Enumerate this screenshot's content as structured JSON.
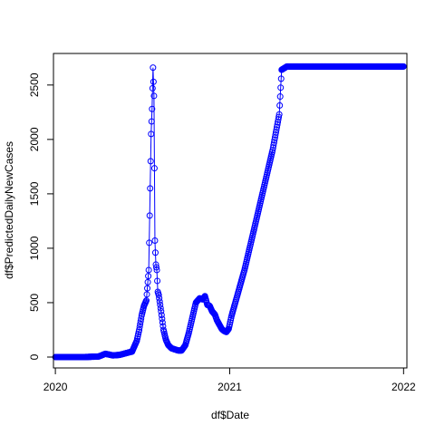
{
  "chart_data": {
    "type": "line",
    "title": "",
    "xlabel": "df$Date",
    "ylabel": "df$PredictedDailyNewCases",
    "x_is_date": true,
    "xlim": [
      "2019-12-28",
      "2022-01-08"
    ],
    "ylim": [
      -100,
      2790
    ],
    "x_ticks": [
      {
        "value": "2020-01-01",
        "label": "2020"
      },
      {
        "value": "2021-01-01",
        "label": "2021"
      },
      {
        "value": "2022-01-01",
        "label": "2022"
      }
    ],
    "y_ticks": [
      {
        "value": 0,
        "label": "0"
      },
      {
        "value": 500,
        "label": "500"
      },
      {
        "value": 1000,
        "label": "1000"
      },
      {
        "value": 1500,
        "label": "1500"
      },
      {
        "value": 2000,
        "label": "2000"
      },
      {
        "value": 2500,
        "label": "2500"
      }
    ],
    "grid": false,
    "legend": "none",
    "series_color": "#0000ff",
    "series": [
      {
        "x": [
          "2020-01-01",
          "2020-02-01",
          "2020-03-01",
          "2020-04-01",
          "2020-04-15",
          "2020-05-01",
          "2020-05-15",
          "2020-06-01",
          "2020-06-10",
          "2020-06-20",
          "2020-06-25",
          "2020-06-30",
          "2020-07-05",
          "2020-07-10",
          "2020-07-15",
          "2020-07-20",
          "2020-07-22",
          "2020-07-24",
          "2020-07-26",
          "2020-07-28",
          "2020-07-30",
          "2020-08-01",
          "2020-08-03",
          "2020-08-05",
          "2020-08-10",
          "2020-08-15",
          "2020-08-20",
          "2020-08-25",
          "2020-09-01",
          "2020-09-08",
          "2020-09-15",
          "2020-09-22",
          "2020-09-30",
          "2020-10-07",
          "2020-10-15",
          "2020-10-22",
          "2020-10-30",
          "2020-11-05",
          "2020-11-10",
          "2020-11-15",
          "2020-11-20",
          "2020-11-25",
          "2020-12-01",
          "2020-12-05",
          "2020-12-10",
          "2020-12-15",
          "2020-12-20",
          "2020-12-25",
          "2020-12-30",
          "2021-01-05",
          "2021-02-01",
          "2021-03-01",
          "2021-04-01",
          "2021-04-15",
          "2021-04-20",
          "2021-05-01",
          "2021-06-01",
          "2021-07-01",
          "2021-08-01",
          "2021-09-01",
          "2021-10-01",
          "2021-11-01",
          "2021-12-01",
          "2022-01-01"
        ],
        "y": [
          0,
          0,
          0,
          5,
          30,
          15,
          20,
          40,
          50,
          150,
          250,
          380,
          470,
          520,
          800,
          2050,
          2280,
          2660,
          2400,
          1070,
          850,
          800,
          600,
          570,
          420,
          250,
          160,
          110,
          80,
          70,
          60,
          60,
          110,
          220,
          370,
          500,
          540,
          530,
          560,
          480,
          470,
          420,
          390,
          340,
          300,
          260,
          240,
          230,
          260,
          380,
          800,
          1320,
          1900,
          2230,
          2640,
          2670,
          2670,
          2670,
          2670,
          2670,
          2670,
          2670,
          2670,
          2670
        ]
      }
    ]
  }
}
